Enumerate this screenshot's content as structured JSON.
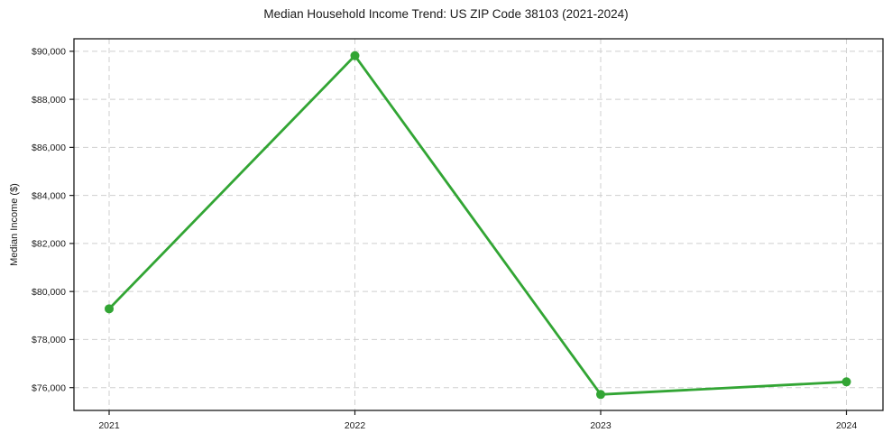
{
  "page": {
    "background": "#ffffff"
  },
  "chart_data": {
    "type": "line",
    "title": "Median Household Income Trend: US ZIP Code 38103 (2021-2024)",
    "xlabel": "",
    "ylabel": "Median Income ($)",
    "categories": [
      "2021",
      "2022",
      "2023",
      "2024"
    ],
    "series": [
      {
        "name": "median-household-income",
        "color": "#32a534",
        "values": [
          79280,
          89815,
          75715,
          76240
        ]
      }
    ],
    "ylim": [
      75050,
      90520
    ],
    "yticks": [
      76000,
      78000,
      80000,
      82000,
      84000,
      86000,
      88000,
      90000
    ],
    "ytick_labels": [
      "$76,000",
      "$78,000",
      "$80,000",
      "$82,000",
      "$84,000",
      "$86,000",
      "$88,000",
      "$90,000"
    ],
    "grid": {
      "horizontal": true,
      "vertical": true,
      "style": "dashed",
      "color": "#cfcfcf"
    },
    "marker": {
      "shape": "circle",
      "radius": 5
    },
    "line_width": 2.8,
    "axis_color": "#1a1a1a",
    "tick_label_color": "#1a1a1a",
    "legend": "none"
  }
}
